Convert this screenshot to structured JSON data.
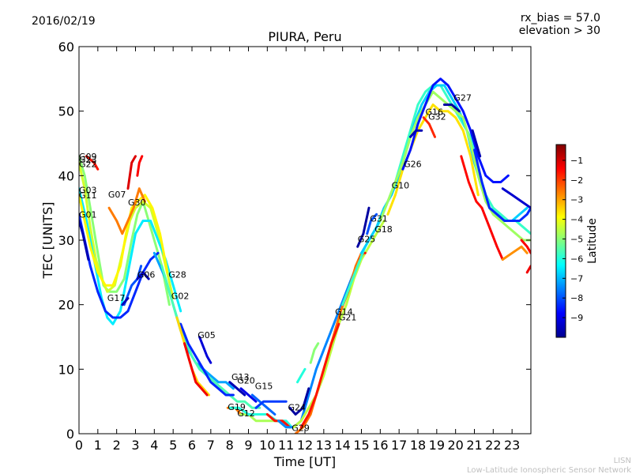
{
  "header": {
    "date": "2016/02/19",
    "rx_bias": "rx_bias = 57.0",
    "elevation": "elevation > 30"
  },
  "footer": {
    "line1": "LISN",
    "line2": "Low-Latitude Ionospheric Sensor Network"
  },
  "chart_data": {
    "type": "line",
    "title": "PIURA, Peru",
    "xlabel": "Time [UT]",
    "ylabel": "TEC [UNITS]",
    "xlim": [
      0,
      24
    ],
    "ylim": [
      0,
      60
    ],
    "xticks": [
      0,
      1,
      2,
      3,
      4,
      5,
      6,
      7,
      8,
      9,
      10,
      11,
      12,
      13,
      14,
      15,
      16,
      17,
      18,
      19,
      20,
      21,
      22,
      23
    ],
    "yticks": [
      0,
      10,
      20,
      30,
      40,
      50,
      60
    ],
    "grid": false,
    "colorbar": {
      "label": "Latitude",
      "min": -10,
      "max": -0.2,
      "ticks": [
        -1,
        -2,
        -3,
        -4,
        -5,
        -6,
        -7,
        -8,
        -9
      ],
      "colors": [
        "#00008f",
        "#0000ff",
        "#0080ff",
        "#00ffff",
        "#80ff80",
        "#ffff00",
        "#ff8000",
        "#ff0000",
        "#800000"
      ]
    },
    "series": [
      {
        "lat": -5.0,
        "x": [
          0,
          0.3,
          0.6,
          1.0,
          1.3,
          1.6,
          2.0,
          2.4,
          2.8,
          3.1,
          3.4,
          3.7,
          4.0,
          4.4,
          4.8
        ],
        "y": [
          43,
          40,
          35,
          28,
          23,
          22,
          22,
          24,
          30,
          34,
          36,
          33,
          30,
          26,
          20
        ]
      },
      {
        "lat": -4.3,
        "x": [
          0,
          0.3,
          0.6,
          0.9,
          1.2,
          1.5,
          1.9,
          2.3,
          2.7,
          3.0,
          3.4,
          3.8,
          4.2,
          4.6,
          5.0
        ],
        "y": [
          42,
          38,
          32,
          27,
          24,
          22,
          23,
          28,
          33,
          35,
          36,
          35,
          31,
          26,
          21
        ]
      },
      {
        "lat": -6.5,
        "x": [
          0,
          0.4,
          0.8,
          1.2,
          1.5,
          1.8,
          2.2,
          2.6,
          3.0,
          3.4,
          3.8,
          4.2,
          4.6,
          5.0,
          5.4
        ],
        "y": [
          38,
          33,
          27,
          21,
          18,
          17,
          19,
          25,
          31,
          33,
          33,
          30,
          27,
          23,
          19
        ]
      },
      {
        "lat": -3.8,
        "x": [
          0,
          0.3,
          0.6,
          1.0,
          1.4,
          1.8,
          2.2,
          2.5,
          2.8,
          3.1,
          3.5,
          3.9,
          4.3,
          4.7
        ],
        "y": [
          37,
          33,
          29,
          25,
          23,
          23,
          26,
          31,
          35,
          36,
          37,
          35,
          31,
          25
        ]
      },
      {
        "lat": -8.4,
        "x": [
          0,
          0.3,
          0.6,
          1.0,
          1.4,
          1.8,
          2.2,
          2.6,
          3.0,
          3.4,
          3.8,
          4.2
        ],
        "y": [
          34,
          30,
          26,
          22,
          19,
          18,
          18,
          19,
          22,
          25,
          27,
          28
        ]
      },
      {
        "lat": -9.6,
        "x": [
          0,
          0.2,
          0.5
        ],
        "y": [
          33,
          31,
          27
        ]
      },
      {
        "lat": -1.6,
        "x": [
          0.4,
          0.8,
          1.0
        ],
        "y": [
          43,
          42,
          41
        ]
      },
      {
        "lat": -2.6,
        "x": [
          1.6,
          2.0,
          2.3,
          2.6,
          2.9,
          3.2,
          3.5
        ],
        "y": [
          35,
          33,
          31,
          33,
          35,
          38,
          36
        ]
      },
      {
        "lat": -1.1,
        "x": [
          2.6,
          2.8,
          3.0
        ],
        "y": [
          38,
          42,
          43
        ]
      },
      {
        "lat": -1.4,
        "x": [
          3.1,
          3.2,
          3.35
        ],
        "y": [
          40,
          42,
          43
        ]
      },
      {
        "lat": -8.0,
        "x": [
          2.4,
          2.8,
          3.1,
          3.3
        ],
        "y": [
          20,
          23,
          24,
          26
        ]
      },
      {
        "lat": -9.5,
        "x": [
          3.1,
          3.4,
          3.7
        ],
        "y": [
          24,
          25,
          24
        ]
      },
      {
        "lat": -9.5,
        "x": [
          2.3,
          2.6
        ],
        "y": [
          20,
          21
        ]
      },
      {
        "lat": -7.2,
        "x": [
          4.0,
          4.3,
          4.6,
          5.0,
          5.4,
          5.8,
          6.2,
          6.6,
          7.0,
          7.4,
          7.8,
          8.2
        ],
        "y": [
          28,
          26,
          24,
          20,
          16,
          13,
          11,
          10,
          9,
          8,
          8,
          7
        ]
      },
      {
        "lat": -5.6,
        "x": [
          4.4,
          4.8,
          5.2,
          5.6,
          6.0,
          6.4,
          6.8,
          7.2,
          7.6,
          8.0,
          8.4,
          8.8,
          9.2,
          9.6
        ],
        "y": [
          26,
          22,
          18,
          15,
          12,
          10,
          9,
          8,
          7,
          6,
          5,
          5,
          4,
          4
        ]
      },
      {
        "lat": -8.4,
        "x": [
          5.4,
          5.8,
          6.2,
          6.6,
          7.0,
          7.4,
          7.8,
          8.2
        ],
        "y": [
          17,
          14,
          12,
          10,
          8,
          7,
          6,
          6
        ]
      },
      {
        "lat": -9.2,
        "x": [
          6.4,
          6.8,
          7.0
        ],
        "y": [
          15,
          12,
          11
        ]
      },
      {
        "lat": -3.5,
        "x": [
          5.2,
          5.6,
          6.0,
          6.3,
          6.6,
          6.9
        ],
        "y": [
          18,
          14,
          10,
          8,
          7,
          6
        ]
      },
      {
        "lat": -1.3,
        "x": [
          5.6,
          5.9,
          6.2,
          6.5,
          6.8
        ],
        "y": [
          14,
          11,
          8,
          7,
          6
        ]
      },
      {
        "lat": -9.6,
        "x": [
          8.0,
          8.4,
          8.8
        ],
        "y": [
          8,
          7,
          6
        ]
      },
      {
        "lat": -9.0,
        "x": [
          8.6,
          9.0,
          9.4
        ],
        "y": [
          7,
          6,
          5
        ]
      },
      {
        "lat": -7.8,
        "x": [
          9.2,
          9.6,
          10.0,
          10.4
        ],
        "y": [
          6,
          5,
          4,
          3
        ]
      },
      {
        "lat": -8.2,
        "x": [
          9.4,
          9.8,
          10.2,
          10.6,
          11.0
        ],
        "y": [
          4,
          5,
          5,
          5,
          5
        ]
      },
      {
        "lat": -2.6,
        "x": [
          7.9,
          8.3,
          8.6
        ],
        "y": [
          4,
          4,
          3
        ]
      },
      {
        "lat": -4.7,
        "x": [
          8.6,
          9.0,
          9.4,
          9.8,
          10.2,
          10.6,
          11.0,
          11.3
        ],
        "y": [
          3,
          3,
          2,
          2,
          2,
          2,
          1,
          1
        ]
      },
      {
        "lat": -6.0,
        "x": [
          8.0,
          8.5,
          9.0,
          9.5,
          10.0,
          10.5,
          11.0,
          11.3
        ],
        "y": [
          4,
          4,
          3,
          3,
          3,
          2,
          2,
          1
        ]
      },
      {
        "lat": -1.6,
        "x": [
          10.0,
          10.4,
          10.8,
          11.2
        ],
        "y": [
          3,
          2,
          2,
          1
        ]
      },
      {
        "lat": -7.5,
        "x": [
          10.6,
          11.0,
          11.4,
          11.8,
          12.2,
          12.6,
          13.0,
          13.4,
          13.8,
          14.2,
          14.6,
          15.0
        ],
        "y": [
          2,
          1,
          1,
          2,
          6,
          10,
          13,
          16,
          19,
          22,
          25,
          28
        ]
      },
      {
        "lat": -9.8,
        "x": [
          11.2,
          11.5,
          11.9,
          12.2
        ],
        "y": [
          4,
          3,
          4,
          7
        ]
      },
      {
        "lat": -6.0,
        "x": [
          11.6,
          11.8,
          12.0
        ],
        "y": [
          8,
          9,
          10
        ]
      },
      {
        "lat": -5.0,
        "x": [
          12.3,
          12.5,
          12.7
        ],
        "y": [
          11,
          13,
          14
        ]
      },
      {
        "lat": -4.5,
        "x": [
          11.4,
          11.8,
          12.2,
          12.6,
          13.0,
          13.4,
          13.8,
          14.2,
          14.6,
          15.0,
          15.4,
          15.8,
          16.2
        ],
        "y": [
          1,
          2,
          4,
          6,
          9,
          13,
          17,
          20,
          24,
          27,
          29,
          31,
          33
        ]
      },
      {
        "lat": -2.5,
        "x": [
          11.5,
          11.9,
          12.3,
          12.7,
          13.1,
          13.5,
          13.9,
          14.3,
          14.7,
          15.0
        ],
        "y": [
          0,
          1,
          3,
          7,
          11,
          15,
          19,
          22,
          26,
          28
        ]
      },
      {
        "lat": -1.6,
        "x": [
          11.8,
          12.2,
          12.6,
          13.0,
          13.4,
          13.8
        ],
        "y": [
          1,
          3,
          6,
          10,
          14,
          17
        ]
      },
      {
        "lat": -9.8,
        "x": [
          14.8,
          15.1,
          15.4
        ],
        "y": [
          29,
          31,
          35
        ]
      },
      {
        "lat": -1.5,
        "x": [
          14.9,
          15.1,
          15.2
        ],
        "y": [
          27,
          28,
          28
        ]
      },
      {
        "lat": -8.0,
        "x": [
          15.3,
          15.5,
          15.8
        ],
        "y": [
          31,
          33,
          34
        ]
      },
      {
        "lat": -5.8,
        "x": [
          14.0,
          14.4,
          14.8,
          15.2,
          15.6,
          16.0,
          16.4,
          16.8,
          17.2,
          17.6,
          18.0,
          18.4,
          18.8,
          19.2,
          19.6,
          20.0,
          20.4,
          20.8,
          21.2,
          21.6,
          22.0,
          22.4,
          22.8,
          23.2,
          23.6,
          24.0
        ],
        "y": [
          20,
          23,
          26,
          29,
          31,
          33,
          36,
          39,
          43,
          47,
          51,
          53,
          54,
          54,
          52,
          50,
          48,
          46,
          41,
          37,
          35,
          34,
          33,
          33,
          32,
          31
        ]
      },
      {
        "lat": -6.8,
        "x": [
          15.0,
          15.4,
          15.8,
          16.2,
          16.6,
          17.0,
          17.4,
          17.8,
          18.2,
          18.6,
          19.0,
          19.4,
          19.8,
          20.2,
          20.6,
          21.0,
          21.4,
          21.8,
          22.2,
          22.6,
          23.0,
          23.4,
          23.8
        ],
        "y": [
          28,
          30,
          32,
          35,
          37,
          40,
          44,
          48,
          51,
          53,
          54,
          54,
          52,
          50,
          47,
          42,
          38,
          35,
          34,
          33,
          33,
          34,
          35
        ]
      },
      {
        "lat": -4.8,
        "x": [
          16.0,
          16.4,
          16.8,
          17.2,
          17.6,
          18.0,
          18.4,
          18.8,
          19.2,
          19.6,
          20.0,
          20.4,
          20.8,
          21.2,
          21.6,
          22.0,
          22.4,
          22.8,
          23.2,
          23.6,
          24.0
        ],
        "y": [
          33,
          36,
          39,
          42,
          46,
          49,
          51,
          53,
          52,
          51,
          50,
          49,
          45,
          40,
          36,
          34,
          33,
          32,
          31,
          30,
          30
        ]
      },
      {
        "lat": -3.6,
        "x": [
          16.4,
          16.8,
          17.2,
          17.6,
          18.0,
          18.4,
          18.8,
          19.2,
          19.6,
          20.0,
          20.4,
          20.8,
          21.2
        ],
        "y": [
          34,
          37,
          41,
          44,
          47,
          49,
          51,
          50,
          50,
          49,
          47,
          43,
          37
        ]
      },
      {
        "lat": -8.6,
        "x": [
          17.2,
          17.6,
          18.0,
          18.4,
          18.8,
          19.2,
          19.6,
          20.0,
          20.4,
          20.8,
          21.2,
          21.6,
          22.0,
          22.4,
          22.8
        ],
        "y": [
          41,
          44,
          48,
          51,
          54,
          55,
          54,
          52,
          50,
          47,
          43,
          40,
          39,
          39,
          40
        ]
      },
      {
        "lat": -9.6,
        "x": [
          17.6,
          17.9,
          18.2
        ],
        "y": [
          46,
          47,
          47
        ]
      },
      {
        "lat": -9.8,
        "x": [
          19.4,
          19.8,
          20.2
        ],
        "y": [
          51,
          51,
          50
        ]
      },
      {
        "lat": -9.6,
        "x": [
          20.9,
          21.1,
          21.3
        ],
        "y": [
          47,
          45,
          43
        ]
      },
      {
        "lat": -8.4,
        "x": [
          21.0,
          21.4,
          21.8,
          22.2,
          22.6,
          23.0,
          23.4,
          23.8,
          24.0
        ],
        "y": [
          44,
          39,
          35,
          34,
          33,
          33,
          33,
          34,
          35
        ]
      },
      {
        "lat": -9.3,
        "x": [
          22.5,
          23.0,
          23.5,
          24.0
        ],
        "y": [
          38,
          37,
          36,
          35
        ]
      },
      {
        "lat": -1.8,
        "x": [
          18.3,
          18.6,
          18.9
        ],
        "y": [
          49,
          48,
          46
        ]
      },
      {
        "lat": -1.5,
        "x": [
          20.3,
          20.7,
          21.1,
          21.4
        ],
        "y": [
          43,
          39,
          36,
          35
        ]
      },
      {
        "lat": -1.4,
        "x": [
          21.4,
          21.8,
          22.2,
          22.5
        ],
        "y": [
          35,
          32,
          29,
          27
        ]
      },
      {
        "lat": -2.8,
        "x": [
          22.5,
          23.0,
          23.5,
          23.8
        ],
        "y": [
          27,
          28,
          29,
          28
        ]
      },
      {
        "lat": -1.4,
        "x": [
          23.5,
          23.8,
          24.0
        ],
        "y": [
          30,
          29,
          28
        ]
      },
      {
        "lat": -1.3,
        "x": [
          23.8,
          24.0
        ],
        "y": [
          25,
          26
        ]
      }
    ],
    "labels": [
      {
        "text": "G09",
        "x": 0.0,
        "y": 42.5
      },
      {
        "text": "G23",
        "x": 0.0,
        "y": 42.0
      },
      {
        "text": "G22",
        "x": 0.0,
        "y": 41.3
      },
      {
        "text": "G03",
        "x": 0.0,
        "y": 37.3
      },
      {
        "text": "G11",
        "x": 0.0,
        "y": 36.5
      },
      {
        "text": "G01",
        "x": 0.0,
        "y": 33.5
      },
      {
        "text": "G07",
        "x": 1.55,
        "y": 36.6
      },
      {
        "text": "G30",
        "x": 2.6,
        "y": 35.4
      },
      {
        "text": "G17",
        "x": 1.5,
        "y": 20.6
      },
      {
        "text": "G06",
        "x": 3.1,
        "y": 24.2
      },
      {
        "text": "G28",
        "x": 4.75,
        "y": 24.2
      },
      {
        "text": "G02",
        "x": 4.9,
        "y": 20.9
      },
      {
        "text": "G05",
        "x": 6.3,
        "y": 14.8
      },
      {
        "text": "G13",
        "x": 8.1,
        "y": 8.3
      },
      {
        "text": "G20",
        "x": 8.4,
        "y": 7.8
      },
      {
        "text": "G15",
        "x": 9.35,
        "y": 6.9
      },
      {
        "text": "G19",
        "x": 7.9,
        "y": 3.7
      },
      {
        "text": "G12",
        "x": 8.4,
        "y": 2.7
      },
      {
        "text": "G24",
        "x": 11.1,
        "y": 3.6
      },
      {
        "text": "G29",
        "x": 11.3,
        "y": 0.4
      },
      {
        "text": "G14",
        "x": 13.6,
        "y": 18.4
      },
      {
        "text": "G21",
        "x": 13.8,
        "y": 17.6
      },
      {
        "text": "G25",
        "x": 14.8,
        "y": 29.7
      },
      {
        "text": "G31",
        "x": 15.45,
        "y": 32.9
      },
      {
        "text": "G18",
        "x": 15.7,
        "y": 31.2
      },
      {
        "text": "G10",
        "x": 16.6,
        "y": 38.0
      },
      {
        "text": "G26",
        "x": 17.25,
        "y": 41.3
      },
      {
        "text": "G16",
        "x": 18.4,
        "y": 49.4
      },
      {
        "text": "G32",
        "x": 18.55,
        "y": 48.7
      },
      {
        "text": "G27",
        "x": 19.9,
        "y": 51.6
      }
    ]
  }
}
